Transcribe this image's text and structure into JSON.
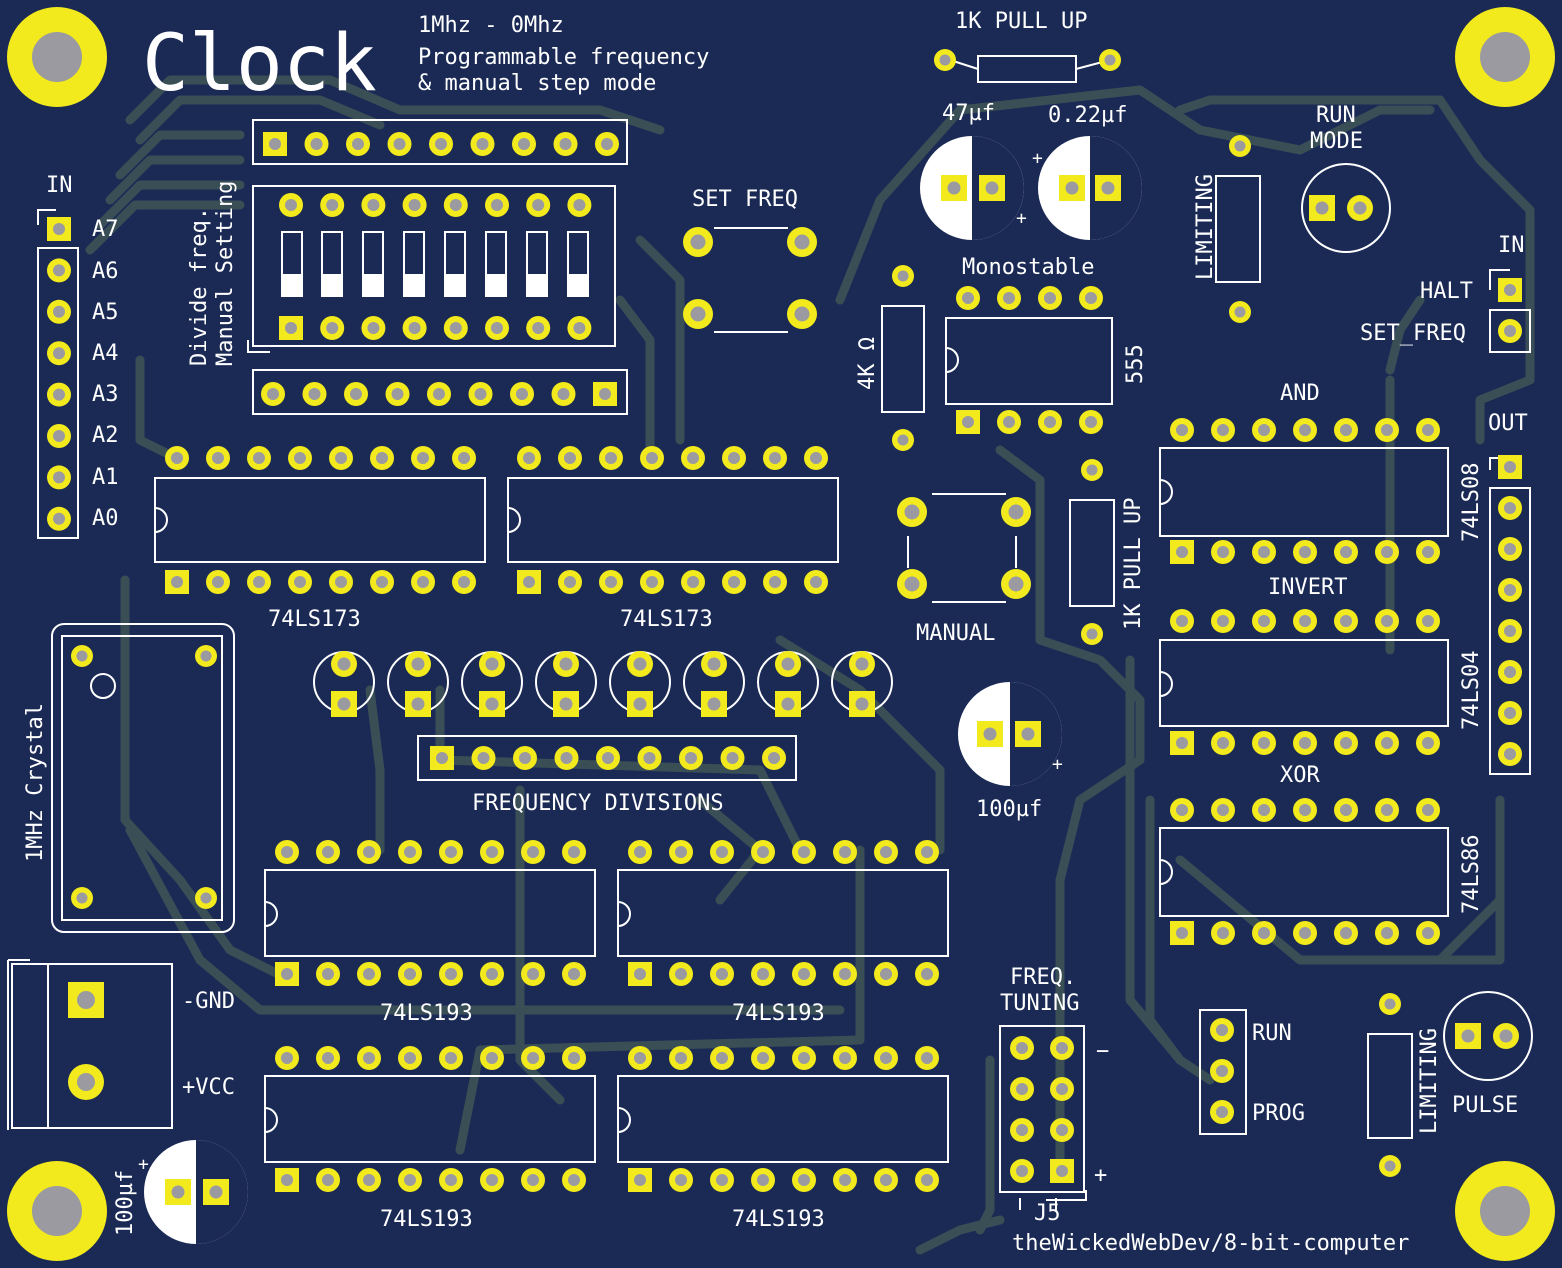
{
  "board": {
    "title": "Clock",
    "subtitle_1": "1Mhz - 0Mhz",
    "subtitle_2": "Programmable frequency",
    "subtitle_3": "& manual step mode",
    "credit": "theWickedWebDev/8-bit-computer",
    "colors": {
      "board": "#1a2a55",
      "trace": "#3a4e56",
      "pad": "#f2ea1c",
      "silk": "#ffffff",
      "drill": "#9a9aa0"
    }
  },
  "labels": {
    "pullup_top": "1K PULL UP",
    "cap_47": "47µf",
    "cap_022": "0.22µf",
    "run_mode_1": "RUN",
    "run_mode_2": "MODE",
    "limiting_top": "LIMITING",
    "set_freq": "SET FREQ",
    "monostable": "Monostable",
    "chip_555": "555",
    "res_4k": "4K Ω",
    "in_left": "IN",
    "in_right": "IN",
    "halt": "HALT",
    "set_freq_pin": "SET_FREQ",
    "out": "OUT",
    "and": "AND",
    "chip_and": "74LS08",
    "invert": "INVERT",
    "chip_invert": "74LS04",
    "xor": "XOR",
    "chip_xor": "74LS86",
    "pullup_mid": "1K PULL UP",
    "manual": "MANUAL",
    "cap_100_mid": "100µf",
    "dip_1": "Divide freq.",
    "dip_2": "Manual Setting",
    "reg_a": "74LS173",
    "reg_b": "74LS173",
    "crystal": "1MHz Crystal",
    "freq_div": "FREQUENCY DIVISIONS",
    "cnt_1": "74LS193",
    "cnt_2": "74LS193",
    "cnt_3": "74LS193",
    "cnt_4": "74LS193",
    "gnd": "-GND",
    "vcc": "+VCC",
    "cap_100_bot": "100µf",
    "freq_tuning_1": "FREQ.",
    "freq_tuning_2": "TUNING",
    "minus": "−",
    "plus": "+",
    "j5": "J5",
    "run": "RUN",
    "prog": "PROG",
    "limiting_bot": "LIMITING",
    "pulse": "PULSE",
    "cap_plus": "+"
  },
  "pins_in": [
    "A7",
    "A6",
    "A5",
    "A4",
    "A3",
    "A2",
    "A1",
    "A0"
  ]
}
